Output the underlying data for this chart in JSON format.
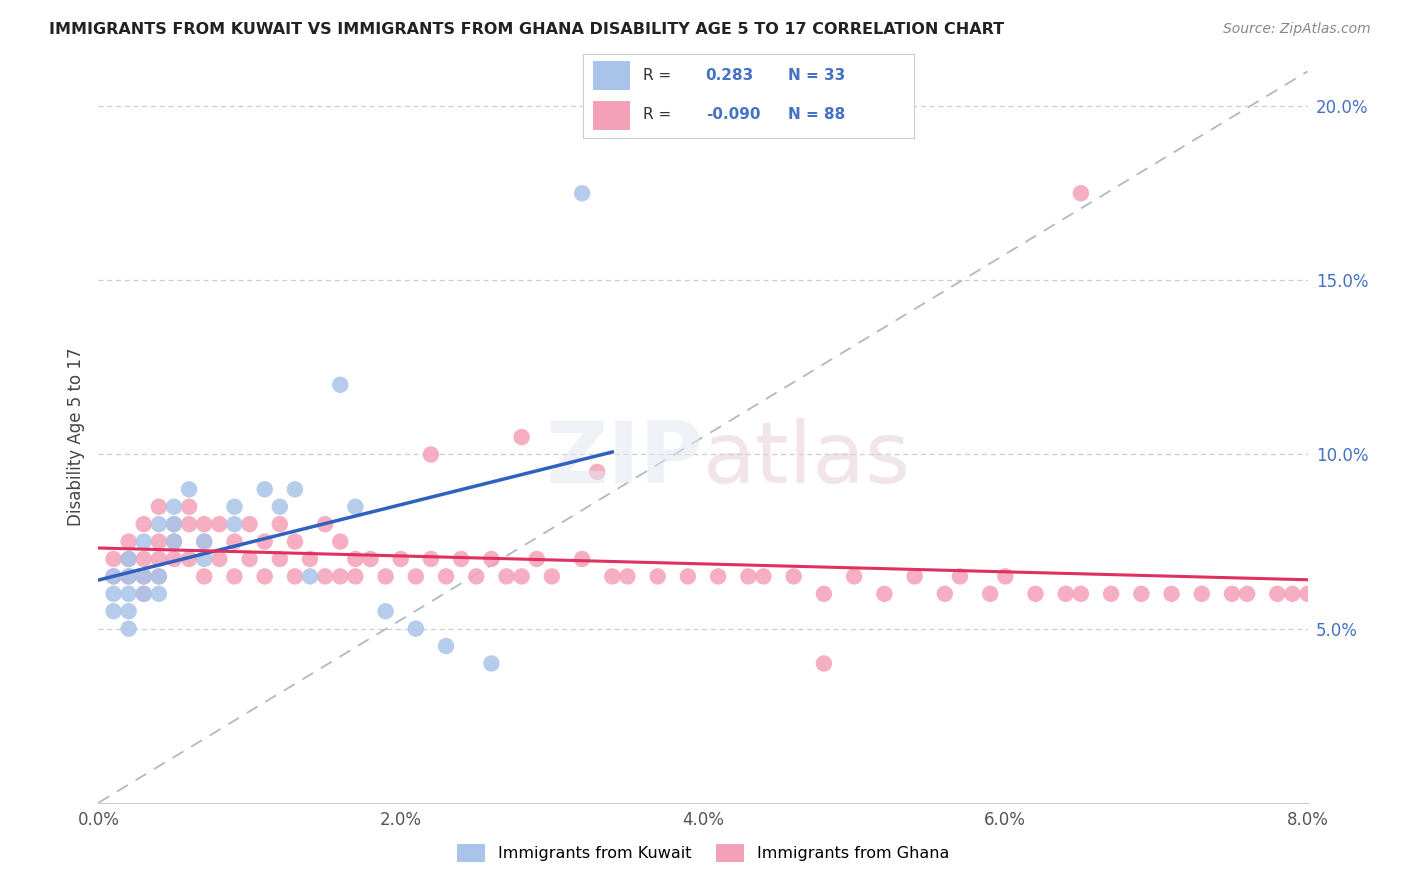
{
  "title": "IMMIGRANTS FROM KUWAIT VS IMMIGRANTS FROM GHANA DISABILITY AGE 5 TO 17 CORRELATION CHART",
  "source": "Source: ZipAtlas.com",
  "ylabel": "Disability Age 5 to 17",
  "legend_kuwait": "Immigrants from Kuwait",
  "legend_ghana": "Immigrants from Ghana",
  "r_kuwait": 0.283,
  "n_kuwait": 33,
  "r_ghana": -0.09,
  "n_ghana": 88,
  "color_kuwait": "#a8c4e8",
  "color_ghana": "#f4a0b8",
  "line_kuwait": "#3060c0",
  "line_ghana": "#e03060",
  "xmin": 0.0,
  "xmax": 0.08,
  "ymin": 0.0,
  "ymax": 0.21,
  "ytick_vals": [
    0.05,
    0.1,
    0.15,
    0.2
  ],
  "xtick_vals": [
    0.0,
    0.02,
    0.04,
    0.06,
    0.08
  ],
  "kuwait_x": [
    0.001,
    0.001,
    0.001,
    0.002,
    0.002,
    0.002,
    0.002,
    0.002,
    0.003,
    0.003,
    0.003,
    0.004,
    0.004,
    0.004,
    0.005,
    0.005,
    0.005,
    0.006,
    0.007,
    0.007,
    0.009,
    0.009,
    0.011,
    0.012,
    0.013,
    0.014,
    0.016,
    0.017,
    0.019,
    0.021,
    0.023,
    0.026,
    0.032
  ],
  "kuwait_y": [
    0.065,
    0.06,
    0.055,
    0.07,
    0.065,
    0.06,
    0.055,
    0.05,
    0.075,
    0.065,
    0.06,
    0.08,
    0.065,
    0.06,
    0.085,
    0.08,
    0.075,
    0.09,
    0.075,
    0.07,
    0.085,
    0.08,
    0.09,
    0.085,
    0.09,
    0.065,
    0.12,
    0.085,
    0.055,
    0.05,
    0.045,
    0.04,
    0.175
  ],
  "ghana_x": [
    0.001,
    0.001,
    0.002,
    0.002,
    0.002,
    0.003,
    0.003,
    0.003,
    0.003,
    0.004,
    0.004,
    0.004,
    0.004,
    0.005,
    0.005,
    0.005,
    0.006,
    0.006,
    0.006,
    0.007,
    0.007,
    0.007,
    0.008,
    0.008,
    0.009,
    0.009,
    0.01,
    0.01,
    0.011,
    0.011,
    0.012,
    0.012,
    0.013,
    0.013,
    0.014,
    0.015,
    0.015,
    0.016,
    0.016,
    0.017,
    0.017,
    0.018,
    0.019,
    0.02,
    0.021,
    0.022,
    0.023,
    0.024,
    0.025,
    0.026,
    0.027,
    0.028,
    0.029,
    0.03,
    0.032,
    0.034,
    0.035,
    0.037,
    0.039,
    0.041,
    0.043,
    0.044,
    0.046,
    0.048,
    0.05,
    0.052,
    0.054,
    0.056,
    0.057,
    0.059,
    0.06,
    0.062,
    0.064,
    0.065,
    0.067,
    0.069,
    0.071,
    0.073,
    0.075,
    0.076,
    0.078,
    0.079,
    0.08,
    0.022,
    0.028,
    0.033,
    0.048,
    0.065
  ],
  "ghana_y": [
    0.07,
    0.065,
    0.075,
    0.07,
    0.065,
    0.08,
    0.07,
    0.065,
    0.06,
    0.085,
    0.075,
    0.07,
    0.065,
    0.08,
    0.075,
    0.07,
    0.085,
    0.08,
    0.07,
    0.08,
    0.075,
    0.065,
    0.08,
    0.07,
    0.075,
    0.065,
    0.08,
    0.07,
    0.075,
    0.065,
    0.08,
    0.07,
    0.075,
    0.065,
    0.07,
    0.08,
    0.065,
    0.075,
    0.065,
    0.07,
    0.065,
    0.07,
    0.065,
    0.07,
    0.065,
    0.07,
    0.065,
    0.07,
    0.065,
    0.07,
    0.065,
    0.065,
    0.07,
    0.065,
    0.07,
    0.065,
    0.065,
    0.065,
    0.065,
    0.065,
    0.065,
    0.065,
    0.065,
    0.06,
    0.065,
    0.06,
    0.065,
    0.06,
    0.065,
    0.06,
    0.065,
    0.06,
    0.06,
    0.06,
    0.06,
    0.06,
    0.06,
    0.06,
    0.06,
    0.06,
    0.06,
    0.06,
    0.06,
    0.1,
    0.105,
    0.095,
    0.04,
    0.175
  ]
}
